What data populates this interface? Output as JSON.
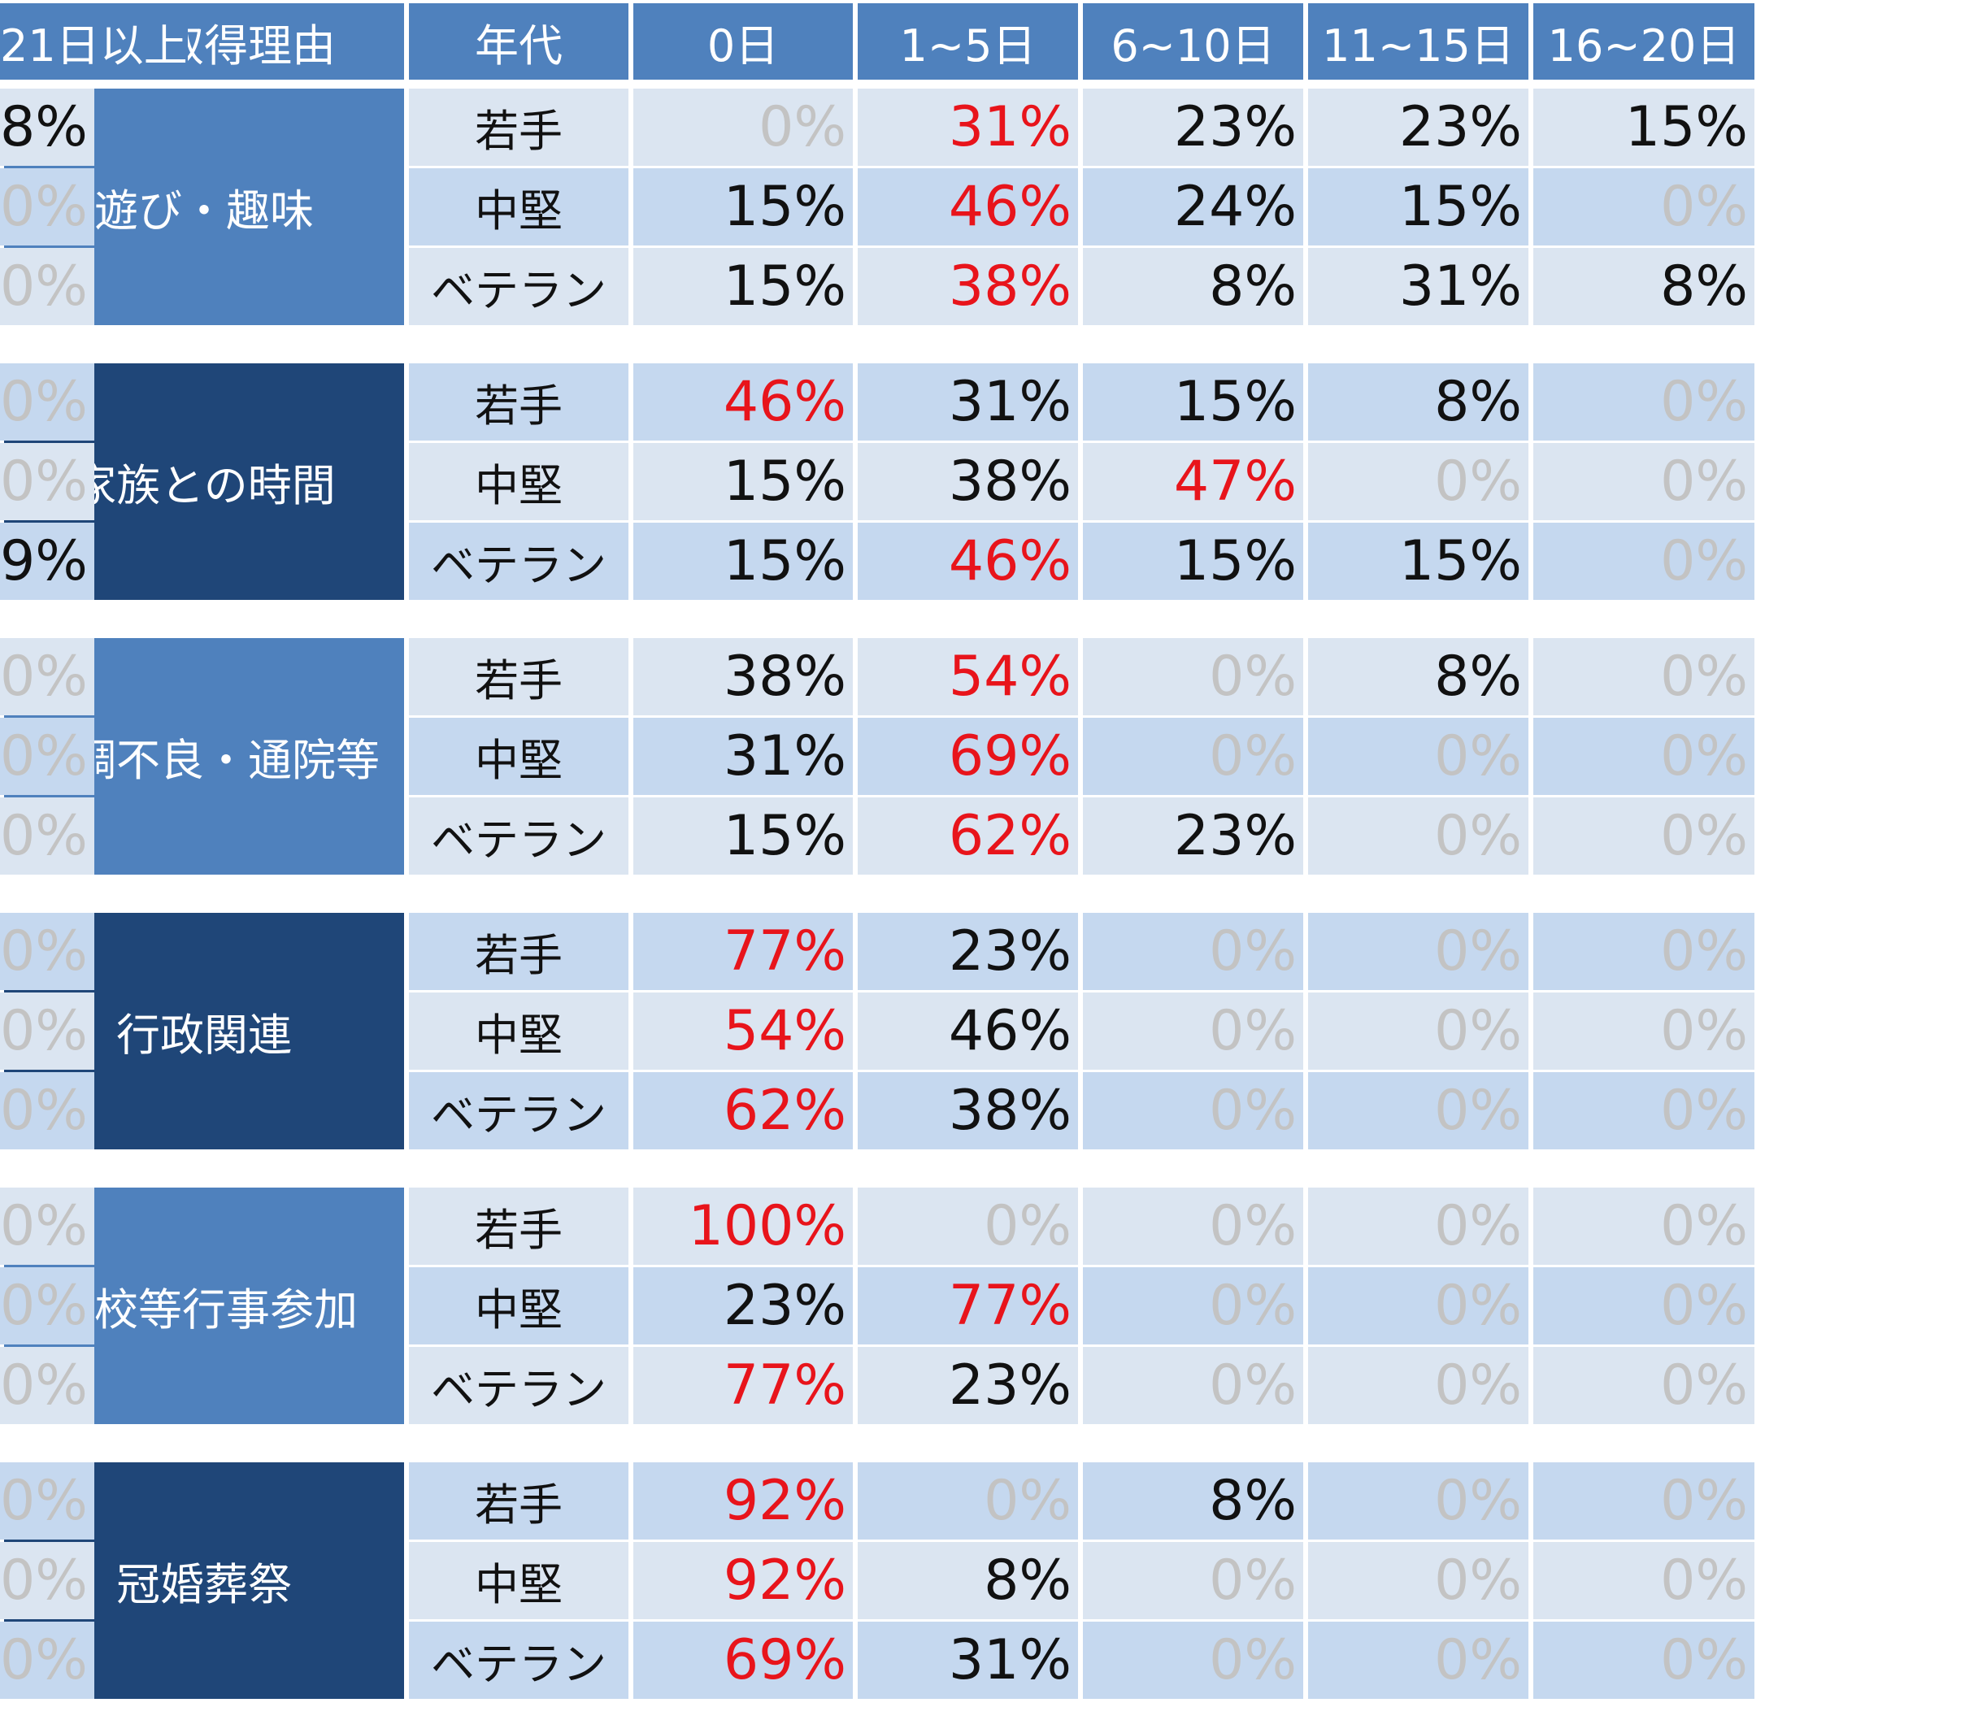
{
  "header": {
    "reason": "休暇取得理由",
    "age_group": "年代",
    "buckets": [
      "0日",
      "1~5日",
      "6~10日",
      "11~15日",
      "16~20日",
      "21日以上"
    ]
  },
  "colors": {
    "header_bg": "#4f81bd",
    "group_light_bg": "#4f81bd",
    "group_dark_bg": "#1f4678",
    "row_band_a": "#dbe5f1",
    "row_band_b": "#c5d8ef",
    "highlight_max_text": "#e8141b",
    "zero_value_text": "#c3c3c3",
    "normal_text": "#111111"
  },
  "chart_data": {
    "type": "table",
    "columns": [
      "休暇取得理由",
      "年代",
      "0日",
      "1~5日",
      "6~10日",
      "11~15日",
      "16~20日",
      "21日以上"
    ],
    "groups": [
      {
        "reason": "遊び・趣味",
        "style": "light",
        "rows": [
          {
            "age": "若手",
            "values": [
              "0%",
              "31%",
              "23%",
              "23%",
              "15%",
              "8%"
            ],
            "max_index": 1
          },
          {
            "age": "中堅",
            "values": [
              "15%",
              "46%",
              "24%",
              "15%",
              "0%",
              "0%"
            ],
            "max_index": 1
          },
          {
            "age": "ベテラン",
            "values": [
              "15%",
              "38%",
              "8%",
              "31%",
              "8%",
              "0%"
            ],
            "max_index": 1
          }
        ]
      },
      {
        "reason": "家族との時間",
        "style": "dark",
        "rows": [
          {
            "age": "若手",
            "values": [
              "46%",
              "31%",
              "15%",
              "8%",
              "0%",
              "0%"
            ],
            "max_index": 0
          },
          {
            "age": "中堅",
            "values": [
              "15%",
              "38%",
              "47%",
              "0%",
              "0%",
              "0%"
            ],
            "max_index": 2
          },
          {
            "age": "ベテラン",
            "values": [
              "15%",
              "46%",
              "15%",
              "15%",
              "0%",
              "9%"
            ],
            "max_index": 1
          }
        ]
      },
      {
        "reason": "体調不良・通院等",
        "style": "light",
        "rows": [
          {
            "age": "若手",
            "values": [
              "38%",
              "54%",
              "0%",
              "8%",
              "0%",
              "0%"
            ],
            "max_index": 1
          },
          {
            "age": "中堅",
            "values": [
              "31%",
              "69%",
              "0%",
              "0%",
              "0%",
              "0%"
            ],
            "max_index": 1
          },
          {
            "age": "ベテラン",
            "values": [
              "15%",
              "62%",
              "23%",
              "0%",
              "0%",
              "0%"
            ],
            "max_index": 1
          }
        ]
      },
      {
        "reason": "行政関連",
        "style": "dark",
        "rows": [
          {
            "age": "若手",
            "values": [
              "77%",
              "23%",
              "0%",
              "0%",
              "0%",
              "0%"
            ],
            "max_index": 0
          },
          {
            "age": "中堅",
            "values": [
              "54%",
              "46%",
              "0%",
              "0%",
              "0%",
              "0%"
            ],
            "max_index": 0
          },
          {
            "age": "ベテラン",
            "values": [
              "62%",
              "38%",
              "0%",
              "0%",
              "0%",
              "0%"
            ],
            "max_index": 0
          }
        ]
      },
      {
        "reason": "学校等行事参加",
        "style": "light",
        "rows": [
          {
            "age": "若手",
            "values": [
              "100%",
              "0%",
              "0%",
              "0%",
              "0%",
              "0%"
            ],
            "max_index": 0
          },
          {
            "age": "中堅",
            "values": [
              "23%",
              "77%",
              "0%",
              "0%",
              "0%",
              "0%"
            ],
            "max_index": 1
          },
          {
            "age": "ベテラン",
            "values": [
              "77%",
              "23%",
              "0%",
              "0%",
              "0%",
              "0%"
            ],
            "max_index": 0
          }
        ]
      },
      {
        "reason": "冠婚葬祭",
        "style": "dark",
        "rows": [
          {
            "age": "若手",
            "values": [
              "92%",
              "0%",
              "8%",
              "0%",
              "0%",
              "0%"
            ],
            "max_index": 0
          },
          {
            "age": "中堅",
            "values": [
              "92%",
              "8%",
              "0%",
              "0%",
              "0%",
              "0%"
            ],
            "max_index": 0
          },
          {
            "age": "ベテラン",
            "values": [
              "69%",
              "31%",
              "0%",
              "0%",
              "0%",
              "0%"
            ],
            "max_index": 0
          }
        ]
      }
    ]
  }
}
